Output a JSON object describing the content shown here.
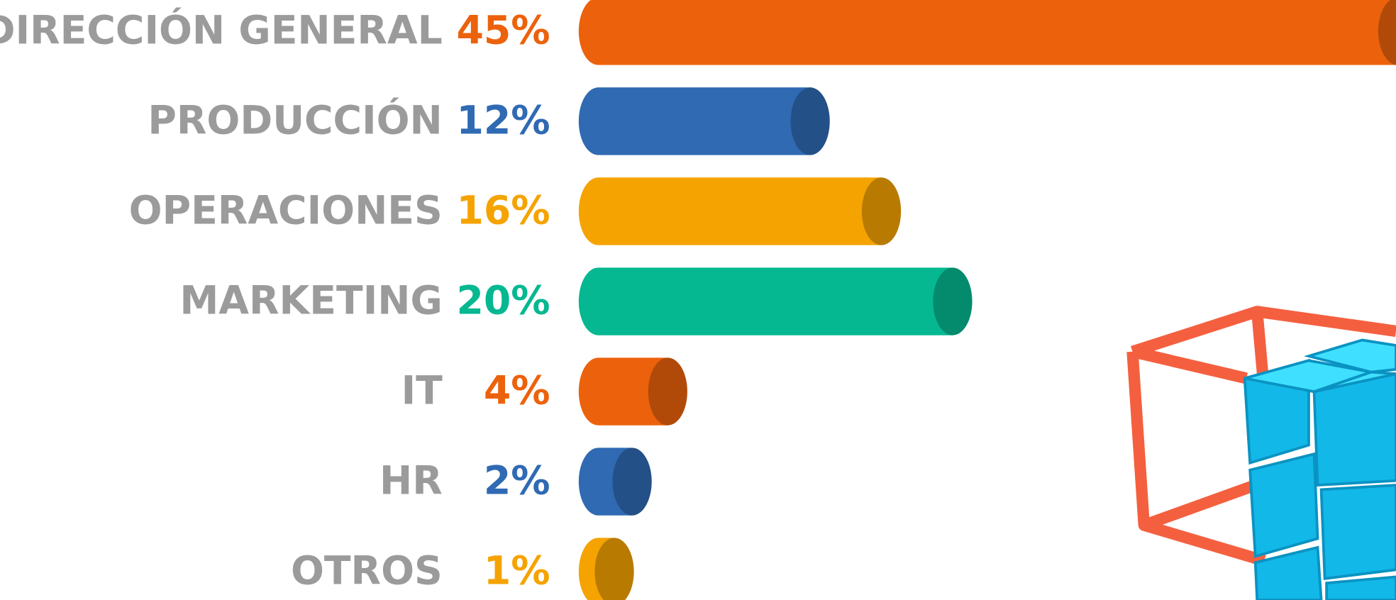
{
  "chart_data": {
    "type": "bar",
    "orientation": "horizontal",
    "categories": [
      "DIRECCIÓN GENERAL",
      "PRODUCCIÓN",
      "OPERACIONES",
      "MARKETING",
      "IT",
      "HR",
      "OTROS"
    ],
    "values": [
      45,
      12,
      16,
      20,
      4,
      2,
      1
    ],
    "value_labels": [
      "45%",
      "12%",
      "16%",
      "20%",
      "4%",
      "2%",
      "1%"
    ],
    "colors": [
      "#ec620c",
      "#2f6ab3",
      "#f5a300",
      "#05b891",
      "#ec620c",
      "#2f6ab3",
      "#f5a300"
    ],
    "category_label_color": "#9b9b9b"
  }
}
